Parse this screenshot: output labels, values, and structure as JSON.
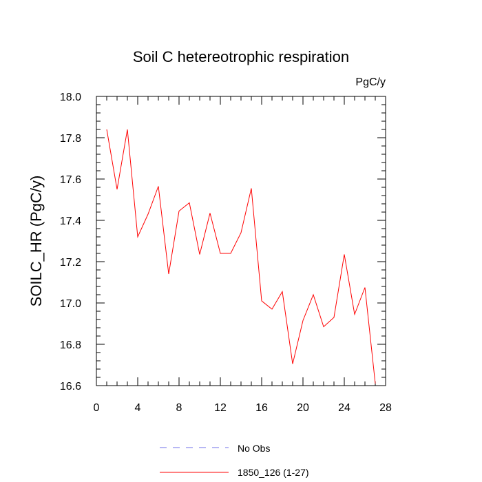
{
  "chart_data": {
    "type": "line",
    "title": "Soil C hetereotrophic respiration",
    "units": "PgC/y",
    "xlabel": "",
    "ylabel": "SOILC_HR  (PgC/y)",
    "xlim": [
      0,
      28
    ],
    "ylim": [
      16.6,
      18.0
    ],
    "x_ticks": [
      0,
      4,
      8,
      12,
      16,
      20,
      24,
      28
    ],
    "x_tick_labels": [
      "0",
      "4",
      "8",
      "12",
      "16",
      "20",
      "24",
      "28"
    ],
    "y_ticks": [
      16.6,
      16.8,
      17.0,
      17.2,
      17.4,
      17.6,
      17.8,
      18.0
    ],
    "y_tick_labels": [
      "16.6",
      "16.8",
      "17.0",
      "17.2",
      "17.4",
      "17.6",
      "17.8",
      "18.0"
    ],
    "series": [
      {
        "name": "1850_126 (1-27)",
        "color": "#ff0000",
        "style": "solid",
        "x": [
          1,
          2,
          3,
          4,
          5,
          6,
          7,
          8,
          9,
          10,
          11,
          12,
          13,
          14,
          15,
          16,
          17,
          18,
          19,
          20,
          21,
          22,
          23,
          24,
          25,
          26,
          27
        ],
        "values": [
          17.84,
          17.55,
          17.84,
          17.32,
          17.43,
          17.565,
          17.14,
          17.445,
          17.485,
          17.235,
          17.435,
          17.24,
          17.24,
          17.34,
          17.555,
          17.01,
          16.97,
          17.055,
          16.705,
          16.915,
          17.04,
          16.885,
          16.93,
          17.235,
          16.945,
          17.075,
          16.61
        ]
      }
    ],
    "legend": [
      {
        "label": "No Obs",
        "color": "#6f6fe8",
        "style": "dashed"
      },
      {
        "label": "1850_126 (1-27)",
        "color": "#ff0000",
        "style": "solid"
      }
    ],
    "legend_position": "bottom"
  }
}
